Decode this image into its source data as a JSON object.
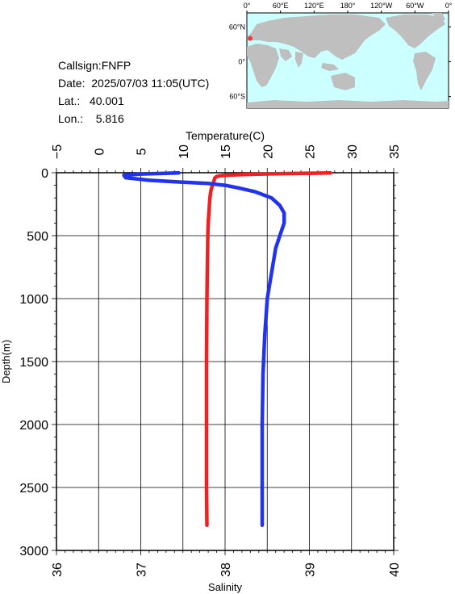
{
  "station": {
    "callsign": "Callsign:FNFP",
    "date": "Date:  2025/07/03 11:05(UTC)",
    "lat": "Lat.:   40.001",
    "lon": "Lon.:    5.816"
  },
  "map": {
    "top_lon_labels": [
      "0°",
      "60°E",
      "120°E",
      "180°",
      "120°W",
      "60°W",
      "0°"
    ],
    "lat_labels": [
      "60°N",
      "0°",
      "60°S"
    ],
    "ocean_color": "#ccffff",
    "land_color": "#bfbfbf",
    "station_marker": {
      "lat": 40.001,
      "lon": 5.816,
      "color": "#ff3333"
    }
  },
  "chart_data": {
    "type": "line",
    "ylabel": "Depth(m)",
    "ylim": [
      0,
      3000
    ],
    "y_inverted": true,
    "y_ticks": [
      0,
      500,
      1000,
      1500,
      2000,
      2500,
      3000
    ],
    "grid": true,
    "top_axis": {
      "label": "Temperature(C)",
      "range": [
        -5,
        35
      ],
      "ticks": [
        -5,
        0,
        5,
        10,
        15,
        20,
        25,
        30,
        35
      ]
    },
    "bottom_axis": {
      "label": "Salinity",
      "range": [
        36,
        40
      ],
      "ticks": [
        36,
        37,
        38,
        39,
        40
      ]
    },
    "series": [
      {
        "axis": "temperature",
        "color": "#ee2222",
        "points": [
          [
            27.5,
            2
          ],
          [
            24.0,
            5
          ],
          [
            21.0,
            8
          ],
          [
            18.5,
            12
          ],
          [
            16.5,
            16
          ],
          [
            15.2,
            20
          ],
          [
            14.4,
            25
          ],
          [
            14.0,
            30
          ],
          [
            13.8,
            40
          ],
          [
            13.7,
            60
          ],
          [
            13.6,
            80
          ],
          [
            13.5,
            100
          ],
          [
            13.4,
            120
          ],
          [
            13.3,
            150
          ],
          [
            13.2,
            200
          ],
          [
            13.1,
            300
          ],
          [
            13.0,
            400
          ],
          [
            12.95,
            500
          ],
          [
            12.9,
            700
          ],
          [
            12.85,
            1000
          ],
          [
            12.8,
            1500
          ],
          [
            12.8,
            2000
          ],
          [
            12.8,
            2500
          ],
          [
            12.85,
            2800
          ]
        ]
      },
      {
        "axis": "salinity",
        "color": "#2233ee",
        "points": [
          [
            37.45,
            2
          ],
          [
            37.0,
            10
          ],
          [
            36.8,
            20
          ],
          [
            36.82,
            40
          ],
          [
            37.1,
            60
          ],
          [
            37.5,
            75
          ],
          [
            37.8,
            85
          ],
          [
            38.0,
            100
          ],
          [
            38.15,
            120
          ],
          [
            38.35,
            150
          ],
          [
            38.55,
            200
          ],
          [
            38.65,
            260
          ],
          [
            38.7,
            320
          ],
          [
            38.7,
            400
          ],
          [
            38.65,
            500
          ],
          [
            38.6,
            600
          ],
          [
            38.55,
            800
          ],
          [
            38.5,
            1000
          ],
          [
            38.47,
            1300
          ],
          [
            38.45,
            1600
          ],
          [
            38.44,
            2000
          ],
          [
            38.44,
            2400
          ],
          [
            38.44,
            2800
          ]
        ]
      }
    ]
  }
}
